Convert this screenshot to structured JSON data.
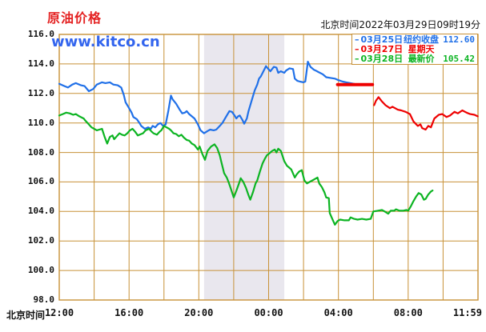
{
  "header": {
    "title": "原油价格",
    "watermark": "www.kitco.cn",
    "timestamp": "北京时间2022年03月29日09时19分"
  },
  "legend": {
    "rows": [
      {
        "dash": "–",
        "date": "03月25日",
        "desc": "纽约收盘",
        "value": "112.60",
        "color": "#2070e8"
      },
      {
        "dash": "–",
        "date": "03月27日",
        "desc": "星期天",
        "value": "",
        "color": "#ee0000"
      },
      {
        "dash": "–",
        "date": "03月28日",
        "desc": "最新价",
        "value": "105.42",
        "color": "#0cb422"
      }
    ]
  },
  "axes": {
    "x_axis_title": "北京时间",
    "x_ticks": [
      {
        "label": "12:00",
        "t": 0
      },
      {
        "label": "16:00",
        "t": 4
      },
      {
        "label": "20:00",
        "t": 8
      },
      {
        "label": "00:00",
        "t": 12
      },
      {
        "label": "04:00",
        "t": 16
      },
      {
        "label": "08:00",
        "t": 20
      },
      {
        "label": "11:59",
        "t": 24
      }
    ],
    "y_ticks": [
      "116.0",
      "114.0",
      "112.0",
      "110.0",
      "108.0",
      "106.0",
      "104.0",
      "102.0",
      "100.0",
      "98.0"
    ]
  },
  "colors": {
    "grid": "#c79137",
    "band": "#e9e7ee",
    "blue": "#2070e8",
    "red": "#ee0000",
    "green": "#0cb422"
  },
  "chart_data": {
    "type": "line",
    "title": "原油价格 (Crude Oil Price, USD)",
    "x_unit": "hours after 12:00 Beijing time",
    "xlim": [
      0,
      24
    ],
    "ylim": [
      98,
      116
    ],
    "y_step": 2,
    "x_grid_step_hours": 2,
    "grid": true,
    "legend_position": "top-right",
    "shaded_band": {
      "t_start": 8.3,
      "t_end": 12.9
    },
    "series": [
      {
        "name": "03月25日 (纽约收盘 112.60)",
        "color": "#2070e8",
        "width": 2.2,
        "points": [
          [
            0,
            112.65
          ],
          [
            0.3,
            112.5
          ],
          [
            0.5,
            112.4
          ],
          [
            0.75,
            112.6
          ],
          [
            0.95,
            112.7
          ],
          [
            1.25,
            112.55
          ],
          [
            1.45,
            112.5
          ],
          [
            1.7,
            112.15
          ],
          [
            1.95,
            112.3
          ],
          [
            2.15,
            112.6
          ],
          [
            2.45,
            112.75
          ],
          [
            2.65,
            112.7
          ],
          [
            2.9,
            112.75
          ],
          [
            3.1,
            112.6
          ],
          [
            3.35,
            112.55
          ],
          [
            3.55,
            112.4
          ],
          [
            3.7,
            111.9
          ],
          [
            3.8,
            111.4
          ],
          [
            4,
            111
          ],
          [
            4.15,
            110.7
          ],
          [
            4.25,
            110.4
          ],
          [
            4.45,
            110.25
          ],
          [
            4.6,
            110
          ],
          [
            4.7,
            109.8
          ],
          [
            4.9,
            109.6
          ],
          [
            5.1,
            109.7
          ],
          [
            5.25,
            109.6
          ],
          [
            5.35,
            109.8
          ],
          [
            5.5,
            109.7
          ],
          [
            5.65,
            109.9
          ],
          [
            5.8,
            110
          ],
          [
            5.95,
            109.8
          ],
          [
            6.1,
            109.9
          ],
          [
            6.25,
            110.8
          ],
          [
            6.4,
            111.85
          ],
          [
            6.5,
            111.6
          ],
          [
            6.7,
            111.3
          ],
          [
            6.9,
            110.9
          ],
          [
            7.05,
            110.65
          ],
          [
            7.2,
            110.7
          ],
          [
            7.3,
            110.8
          ],
          [
            7.45,
            110.6
          ],
          [
            7.6,
            110.45
          ],
          [
            7.75,
            110.3
          ],
          [
            7.95,
            109.9
          ],
          [
            8.1,
            109.5
          ],
          [
            8.3,
            109.3
          ],
          [
            8.5,
            109.45
          ],
          [
            8.65,
            109.55
          ],
          [
            8.85,
            109.5
          ],
          [
            9,
            109.55
          ],
          [
            9.2,
            109.8
          ],
          [
            9.35,
            110
          ],
          [
            9.55,
            110.4
          ],
          [
            9.75,
            110.8
          ],
          [
            9.9,
            110.75
          ],
          [
            10.05,
            110.5
          ],
          [
            10.15,
            110.3
          ],
          [
            10.25,
            110.45
          ],
          [
            10.35,
            110.5
          ],
          [
            10.5,
            110.2
          ],
          [
            10.6,
            109.95
          ],
          [
            10.75,
            110.3
          ],
          [
            10.85,
            110.8
          ],
          [
            11,
            111.4
          ],
          [
            11.2,
            112.2
          ],
          [
            11.35,
            112.6
          ],
          [
            11.45,
            113
          ],
          [
            11.55,
            113.15
          ],
          [
            11.7,
            113.5
          ],
          [
            11.85,
            113.85
          ],
          [
            11.95,
            113.7
          ],
          [
            12.1,
            113.5
          ],
          [
            12.3,
            113.8
          ],
          [
            12.45,
            113.75
          ],
          [
            12.55,
            113.4
          ],
          [
            12.7,
            113.5
          ],
          [
            12.9,
            113.4
          ],
          [
            13,
            113.55
          ],
          [
            13.2,
            113.7
          ],
          [
            13.4,
            113.65
          ],
          [
            13.5,
            113
          ],
          [
            13.65,
            112.85
          ],
          [
            13.8,
            112.8
          ],
          [
            14,
            112.75
          ],
          [
            14.1,
            112.8
          ],
          [
            14.25,
            114.15
          ],
          [
            14.4,
            113.8
          ],
          [
            14.6,
            113.6
          ],
          [
            14.7,
            113.55
          ],
          [
            14.85,
            113.45
          ],
          [
            15.1,
            113.3
          ],
          [
            15.3,
            113.1
          ],
          [
            15.55,
            113.05
          ],
          [
            15.8,
            113
          ],
          [
            16,
            112.9
          ],
          [
            16.25,
            112.8
          ],
          [
            16.45,
            112.75
          ],
          [
            16.7,
            112.7
          ],
          [
            16.9,
            112.65
          ],
          [
            17,
            112.6
          ]
        ]
      },
      {
        "name": "03月27日 星期天 休市 (flat at 112.60)",
        "color": "#ee0000",
        "width": 4,
        "points": [
          [
            15.95,
            112.6
          ],
          [
            17.95,
            112.6
          ]
        ]
      },
      {
        "name": "03月27日",
        "color": "#ee0000",
        "width": 2.2,
        "points": [
          [
            18.05,
            111.2
          ],
          [
            18.15,
            111.5
          ],
          [
            18.3,
            111.75
          ],
          [
            18.5,
            111.45
          ],
          [
            18.7,
            111.2
          ],
          [
            18.95,
            111
          ],
          [
            19.1,
            111.1
          ],
          [
            19.4,
            110.9
          ],
          [
            19.6,
            110.85
          ],
          [
            19.85,
            110.75
          ],
          [
            20.1,
            110.6
          ],
          [
            20.3,
            110.1
          ],
          [
            20.55,
            109.8
          ],
          [
            20.7,
            109.9
          ],
          [
            20.8,
            109.65
          ],
          [
            21,
            109.55
          ],
          [
            21.15,
            109.8
          ],
          [
            21.3,
            109.7
          ],
          [
            21.5,
            110.3
          ],
          [
            21.75,
            110.55
          ],
          [
            21.95,
            110.6
          ],
          [
            22.2,
            110.4
          ],
          [
            22.4,
            110.5
          ],
          [
            22.65,
            110.75
          ],
          [
            22.85,
            110.65
          ],
          [
            23.1,
            110.85
          ],
          [
            23.35,
            110.7
          ],
          [
            23.55,
            110.6
          ],
          [
            23.8,
            110.55
          ],
          [
            23.98,
            110.45
          ]
        ]
      },
      {
        "name": "03月28日 (最新价 105.42)",
        "color": "#0cb422",
        "width": 2.2,
        "points": [
          [
            0,
            110.5
          ],
          [
            0.2,
            110.6
          ],
          [
            0.4,
            110.7
          ],
          [
            0.6,
            110.65
          ],
          [
            0.8,
            110.55
          ],
          [
            0.95,
            110.6
          ],
          [
            1.15,
            110.45
          ],
          [
            1.4,
            110.3
          ],
          [
            1.5,
            110.15
          ],
          [
            1.7,
            109.9
          ],
          [
            1.85,
            109.7
          ],
          [
            2,
            109.6
          ],
          [
            2.15,
            109.5
          ],
          [
            2.45,
            109.6
          ],
          [
            2.6,
            109.05
          ],
          [
            2.75,
            108.6
          ],
          [
            2.9,
            109.05
          ],
          [
            3.05,
            109.15
          ],
          [
            3.15,
            108.9
          ],
          [
            3.3,
            109.1
          ],
          [
            3.45,
            109.3
          ],
          [
            3.6,
            109.2
          ],
          [
            3.75,
            109.15
          ],
          [
            3.9,
            109.3
          ],
          [
            4.05,
            109.5
          ],
          [
            4.2,
            109.6
          ],
          [
            4.35,
            109.4
          ],
          [
            4.5,
            109.15
          ],
          [
            4.7,
            109.25
          ],
          [
            4.8,
            109.3
          ],
          [
            4.95,
            109.5
          ],
          [
            5.15,
            109.6
          ],
          [
            5.3,
            109.4
          ],
          [
            5.4,
            109.3
          ],
          [
            5.6,
            109.2
          ],
          [
            5.75,
            109.4
          ],
          [
            5.85,
            109.5
          ],
          [
            6,
            109.8
          ],
          [
            6.15,
            109.7
          ],
          [
            6.3,
            109.6
          ],
          [
            6.4,
            109.5
          ],
          [
            6.55,
            109.3
          ],
          [
            6.7,
            109.25
          ],
          [
            6.85,
            109.1
          ],
          [
            7,
            109.2
          ],
          [
            7.15,
            109
          ],
          [
            7.3,
            108.85
          ],
          [
            7.45,
            108.8
          ],
          [
            7.6,
            108.6
          ],
          [
            7.75,
            108.5
          ],
          [
            7.95,
            108.2
          ],
          [
            8.05,
            108.4
          ],
          [
            8.2,
            107.9
          ],
          [
            8.35,
            107.5
          ],
          [
            8.5,
            108.1
          ],
          [
            8.7,
            108.4
          ],
          [
            8.9,
            108.55
          ],
          [
            9.05,
            108.3
          ],
          [
            9.2,
            107.8
          ],
          [
            9.3,
            107.3
          ],
          [
            9.45,
            106.6
          ],
          [
            9.6,
            106.3
          ],
          [
            9.7,
            106
          ],
          [
            9.85,
            105.5
          ],
          [
            10,
            104.95
          ],
          [
            10.15,
            105.4
          ],
          [
            10.3,
            105.9
          ],
          [
            10.4,
            106.25
          ],
          [
            10.55,
            106
          ],
          [
            10.7,
            105.6
          ],
          [
            10.85,
            105.1
          ],
          [
            10.95,
            104.8
          ],
          [
            11.1,
            105.3
          ],
          [
            11.25,
            105.9
          ],
          [
            11.35,
            106.1
          ],
          [
            11.5,
            106.7
          ],
          [
            11.65,
            107.25
          ],
          [
            11.8,
            107.6
          ],
          [
            11.9,
            107.8
          ],
          [
            12.05,
            107.95
          ],
          [
            12.2,
            108.1
          ],
          [
            12.35,
            108.2
          ],
          [
            12.45,
            108
          ],
          [
            12.55,
            108.25
          ],
          [
            12.7,
            108.1
          ],
          [
            12.9,
            107.4
          ],
          [
            13.05,
            107.1
          ],
          [
            13.15,
            107
          ],
          [
            13.3,
            106.85
          ],
          [
            13.5,
            106.3
          ],
          [
            13.6,
            106.5
          ],
          [
            13.75,
            106.7
          ],
          [
            13.9,
            106.8
          ],
          [
            14.05,
            106.1
          ],
          [
            14.2,
            105.9
          ],
          [
            14.35,
            106
          ],
          [
            14.5,
            106.1
          ],
          [
            14.65,
            106.2
          ],
          [
            14.8,
            106.3
          ],
          [
            14.9,
            105.9
          ],
          [
            15.05,
            105.65
          ],
          [
            15.2,
            105.3
          ],
          [
            15.3,
            104.95
          ],
          [
            15.45,
            104.9
          ],
          [
            15.5,
            103.9
          ],
          [
            15.65,
            103.5
          ],
          [
            15.8,
            103.1
          ],
          [
            15.95,
            103.35
          ],
          [
            16.1,
            103.45
          ],
          [
            16.35,
            103.4
          ],
          [
            16.6,
            103.4
          ],
          [
            16.7,
            103.6
          ],
          [
            16.9,
            103.5
          ],
          [
            17.1,
            103.45
          ],
          [
            17.35,
            103.5
          ],
          [
            17.6,
            103.45
          ],
          [
            17.85,
            103.5
          ],
          [
            18,
            104
          ],
          [
            18.25,
            104.05
          ],
          [
            18.5,
            104.1
          ],
          [
            18.65,
            104
          ],
          [
            18.85,
            103.85
          ],
          [
            19,
            104.05
          ],
          [
            19.2,
            104.05
          ],
          [
            19.3,
            104.15
          ],
          [
            19.5,
            104.05
          ],
          [
            19.7,
            104.05
          ],
          [
            19.9,
            104.1
          ],
          [
            20,
            104.05
          ],
          [
            20.15,
            104.35
          ],
          [
            20.3,
            104.7
          ],
          [
            20.45,
            105
          ],
          [
            20.6,
            105.25
          ],
          [
            20.75,
            105.15
          ],
          [
            20.9,
            104.8
          ],
          [
            21,
            104.85
          ],
          [
            21.15,
            105.15
          ],
          [
            21.3,
            105.35
          ],
          [
            21.4,
            105.42
          ]
        ]
      }
    ]
  }
}
